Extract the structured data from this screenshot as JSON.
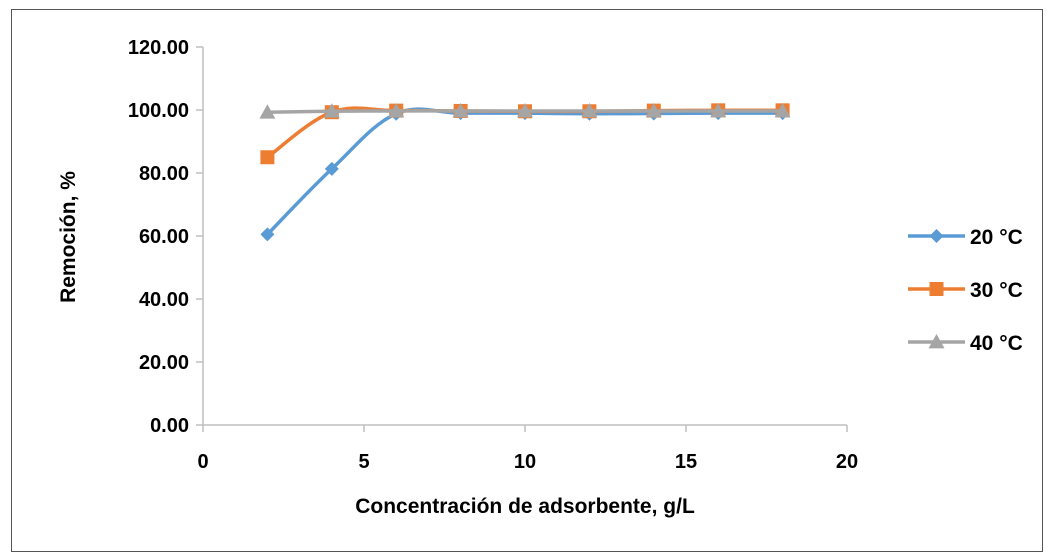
{
  "chart_data": {
    "type": "line",
    "title": "",
    "xlabel": "Concentración de adsorbente, g/L",
    "ylabel": "Remoción, %",
    "xlim": [
      0,
      20
    ],
    "ylim": [
      0,
      120
    ],
    "xticks": [
      "0",
      "5",
      "10",
      "15",
      "20"
    ],
    "yticks": [
      "0.00",
      "20.00",
      "40.00",
      "60.00",
      "80.00",
      "100.00",
      "120.00"
    ],
    "grid": false,
    "legend_position": "right",
    "series": [
      {
        "name": "20 °C",
        "color": "#5b9bd5",
        "marker": "diamond",
        "x": [
          2,
          4,
          6,
          8,
          10,
          12,
          14,
          16,
          18
        ],
        "y": [
          60.5,
          81.3,
          98.8,
          99.0,
          99.0,
          98.8,
          98.9,
          99.0,
          99.0
        ]
      },
      {
        "name": "30 °C",
        "color": "#ed7d31",
        "marker": "square",
        "x": [
          2,
          4,
          6,
          8,
          10,
          12,
          14,
          16,
          18
        ],
        "y": [
          85.0,
          99.3,
          99.8,
          99.7,
          99.6,
          99.6,
          99.8,
          99.9,
          99.9
        ]
      },
      {
        "name": "40 °C",
        "color": "#a5a5a5",
        "marker": "triangle",
        "x": [
          2,
          4,
          6,
          8,
          10,
          12,
          14,
          16,
          18
        ],
        "y": [
          99.3,
          99.6,
          99.7,
          99.7,
          99.7,
          99.7,
          99.7,
          99.7,
          99.7
        ]
      }
    ]
  }
}
